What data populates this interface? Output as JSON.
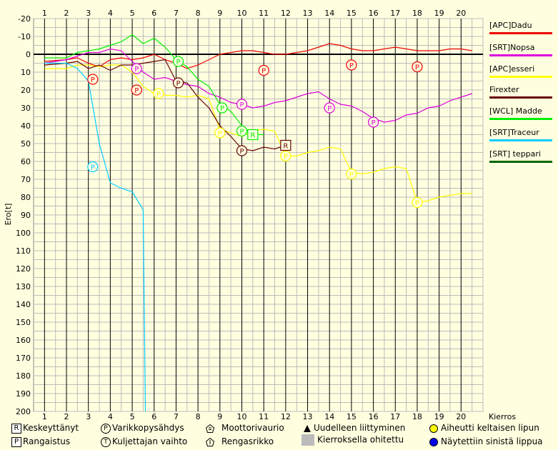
{
  "chart_data": {
    "type": "line",
    "ylabel": "Ero[t]",
    "xlabel": "Kierros",
    "x_ticks": [
      "1",
      "2",
      "3",
      "4",
      "5",
      "6",
      "7",
      "8",
      "9",
      "10",
      "11",
      "12",
      "13",
      "14",
      "15",
      "16",
      "17",
      "18",
      "19",
      "20"
    ],
    "y_ticks": [
      "-20",
      "-10",
      "0",
      "10",
      "20",
      "30",
      "40",
      "50",
      "60",
      "70",
      "80",
      "90",
      "100",
      "110",
      "120",
      "130",
      "140",
      "150",
      "160",
      "170",
      "180",
      "190",
      "200"
    ],
    "ylim": [
      -20,
      200
    ],
    "xlim": [
      0.5,
      21
    ],
    "y_inverted": true,
    "series": [
      {
        "name": "[APC]Dadu",
        "color": "#EE0000",
        "points": [
          [
            1,
            4
          ],
          [
            2,
            3
          ],
          [
            2.5,
            2
          ],
          [
            3,
            5
          ],
          [
            3.5,
            7
          ],
          [
            4,
            3
          ],
          [
            4.5,
            2
          ],
          [
            5,
            3
          ],
          [
            5.5,
            2
          ],
          [
            6,
            0
          ],
          [
            6.5,
            3
          ],
          [
            7,
            5
          ],
          [
            7.5,
            8
          ],
          [
            8,
            6
          ],
          [
            8.5,
            3
          ],
          [
            9,
            0
          ],
          [
            9.5,
            -1
          ],
          [
            10,
            -2
          ],
          [
            10.5,
            -2
          ],
          [
            11,
            -1
          ],
          [
            11.5,
            0
          ],
          [
            12,
            0
          ],
          [
            12.5,
            -1
          ],
          [
            13,
            -2
          ],
          [
            13.5,
            -4
          ],
          [
            14,
            -6
          ],
          [
            14.5,
            -5
          ],
          [
            15,
            -3
          ],
          [
            15.5,
            -2
          ],
          [
            16,
            -2
          ],
          [
            16.5,
            -3
          ],
          [
            17,
            -4
          ],
          [
            17.5,
            -3
          ],
          [
            18,
            -2
          ],
          [
            18.5,
            -2
          ],
          [
            19,
            -2
          ],
          [
            19.5,
            -3
          ],
          [
            20,
            -3
          ],
          [
            20.5,
            -2
          ]
        ]
      },
      {
        "name": "[SRT]Nopsa",
        "color": "#DD00DD",
        "points": [
          [
            1,
            5
          ],
          [
            2,
            3
          ],
          [
            2.5,
            1
          ],
          [
            3,
            -1
          ],
          [
            3.5,
            -1
          ],
          [
            4,
            -3
          ],
          [
            4.5,
            -2
          ],
          [
            5,
            4
          ],
          [
            5.5,
            10
          ],
          [
            6,
            14
          ],
          [
            6.5,
            13
          ],
          [
            7,
            15
          ],
          [
            7.5,
            17
          ],
          [
            8,
            18
          ],
          [
            8.5,
            22
          ],
          [
            9,
            24
          ],
          [
            9.5,
            27
          ],
          [
            10,
            28
          ],
          [
            10.5,
            30
          ],
          [
            11,
            29
          ],
          [
            11.5,
            27
          ],
          [
            12,
            26
          ],
          [
            12.5,
            24
          ],
          [
            13,
            22
          ],
          [
            13.5,
            21
          ],
          [
            14,
            25
          ],
          [
            14.5,
            28
          ],
          [
            15,
            29
          ],
          [
            15.5,
            32
          ],
          [
            16,
            36
          ],
          [
            16.5,
            38
          ],
          [
            17,
            37
          ],
          [
            17.5,
            34
          ],
          [
            18,
            33
          ],
          [
            18.5,
            30
          ],
          [
            19,
            29
          ],
          [
            19.5,
            26
          ],
          [
            20,
            24
          ],
          [
            20.5,
            22
          ]
        ]
      },
      {
        "name": "[APC]esseri",
        "color": "#FFFF00",
        "points": [
          [
            1,
            8
          ],
          [
            2,
            8
          ],
          [
            2.5,
            6
          ],
          [
            3,
            6
          ],
          [
            3.5,
            7
          ],
          [
            4,
            6
          ],
          [
            4.5,
            6
          ],
          [
            5,
            10
          ],
          [
            5.5,
            18
          ],
          [
            6,
            22
          ],
          [
            6.5,
            23
          ],
          [
            7,
            23
          ],
          [
            7.5,
            24
          ],
          [
            8,
            23
          ],
          [
            8.5,
            25
          ],
          [
            9,
            42
          ],
          [
            9.5,
            44
          ],
          [
            10,
            46
          ],
          [
            10.5,
            43
          ],
          [
            11,
            42
          ],
          [
            11.5,
            43
          ],
          [
            12,
            57
          ],
          [
            12.5,
            57
          ],
          [
            13,
            55
          ],
          [
            13.5,
            54
          ],
          [
            14,
            52
          ],
          [
            14.5,
            53
          ],
          [
            15,
            66
          ],
          [
            15.5,
            67
          ],
          [
            16,
            66
          ],
          [
            16.5,
            64
          ],
          [
            17,
            63
          ],
          [
            17.5,
            64
          ],
          [
            18,
            83
          ],
          [
            18.5,
            82
          ],
          [
            19,
            80
          ],
          [
            19.5,
            79
          ],
          [
            20,
            78
          ],
          [
            20.5,
            78
          ]
        ]
      },
      {
        "name": "Firexter",
        "color": "#660000",
        "points": [
          [
            1,
            6
          ],
          [
            2,
            5
          ],
          [
            2.5,
            4
          ],
          [
            3,
            8
          ],
          [
            3.5,
            6
          ],
          [
            4,
            9
          ],
          [
            4.5,
            6
          ],
          [
            5,
            6
          ],
          [
            5.5,
            5
          ],
          [
            6,
            4
          ],
          [
            6.5,
            3
          ],
          [
            7,
            15
          ],
          [
            7.5,
            16
          ],
          [
            8,
            24
          ],
          [
            8.5,
            30
          ],
          [
            9,
            40
          ],
          [
            9.5,
            46
          ],
          [
            10,
            53
          ],
          [
            10.5,
            54
          ],
          [
            11,
            52
          ],
          [
            11.5,
            53
          ],
          [
            12,
            51
          ]
        ]
      },
      {
        "name": "[WCL] Madde",
        "color": "#00EE00",
        "points": [
          [
            1,
            2
          ],
          [
            2,
            2
          ],
          [
            2.5,
            -1
          ],
          [
            3,
            -2
          ],
          [
            3.5,
            -3
          ],
          [
            4,
            -5
          ],
          [
            4.5,
            -7
          ],
          [
            5,
            -11
          ],
          [
            5.5,
            -6
          ],
          [
            6,
            -9
          ],
          [
            6.5,
            -4
          ],
          [
            7,
            3
          ],
          [
            7.5,
            7
          ],
          [
            8,
            14
          ],
          [
            8.5,
            18
          ],
          [
            9,
            28
          ],
          [
            9.5,
            32
          ],
          [
            10,
            40
          ],
          [
            10.5,
            45
          ],
          [
            11,
            45
          ]
        ]
      },
      {
        "name": "[SRT]Traceur",
        "color": "#00CCFF",
        "points": [
          [
            1,
            5
          ],
          [
            2,
            5
          ],
          [
            2.5,
            8
          ],
          [
            3,
            15
          ],
          [
            3.5,
            50
          ],
          [
            4,
            72
          ],
          [
            4.5,
            75
          ],
          [
            5,
            77
          ],
          [
            5.5,
            87
          ],
          [
            5.6,
            200
          ]
        ]
      },
      {
        "name": "[SRT] teppari",
        "color": "#006600",
        "points": []
      }
    ],
    "markers": [
      {
        "label": "P",
        "x": 3.2,
        "y": 14,
        "color": "#EE0000"
      },
      {
        "label": "P",
        "x": 5.2,
        "y": 20,
        "color": "#EE0000"
      },
      {
        "label": "P",
        "x": 11,
        "y": 9,
        "color": "#EE0000"
      },
      {
        "label": "P",
        "x": 15,
        "y": 6,
        "color": "#EE0000"
      },
      {
        "label": "P",
        "x": 18,
        "y": 7,
        "color": "#EE0000"
      },
      {
        "label": "P",
        "x": 5.2,
        "y": 8,
        "color": "#DD00DD"
      },
      {
        "label": "P",
        "x": 10,
        "y": 28,
        "color": "#DD00DD"
      },
      {
        "label": "P",
        "x": 14,
        "y": 30,
        "color": "#DD00DD"
      },
      {
        "label": "P",
        "x": 16,
        "y": 38,
        "color": "#DD00DD"
      },
      {
        "label": "P",
        "x": 6.2,
        "y": 22,
        "color": "#FFFF00"
      },
      {
        "label": "P",
        "x": 9,
        "y": 44,
        "color": "#FFFF00"
      },
      {
        "label": "P",
        "x": 12,
        "y": 57,
        "color": "#FFFF00"
      },
      {
        "label": "P",
        "x": 15,
        "y": 67,
        "color": "#FFFF00"
      },
      {
        "label": "P",
        "x": 18,
        "y": 83,
        "color": "#FFFF00"
      },
      {
        "label": "P",
        "x": 7.1,
        "y": 16,
        "color": "#660000"
      },
      {
        "label": "P",
        "x": 10,
        "y": 54,
        "color": "#660000"
      },
      {
        "label": "P",
        "x": 7.1,
        "y": 4,
        "color": "#00EE00"
      },
      {
        "label": "P",
        "x": 9.1,
        "y": 30,
        "color": "#00EE00"
      },
      {
        "label": "P",
        "x": 10,
        "y": 43,
        "color": "#00EE00"
      },
      {
        "label": "P",
        "x": 3.2,
        "y": 63,
        "color": "#00CCFF"
      }
    ],
    "box_markers": [
      {
        "label": "R",
        "x": 10.5,
        "y": 45,
        "color": "#00EE00"
      },
      {
        "label": "R",
        "x": 12,
        "y": 51,
        "color": "#660000"
      }
    ]
  },
  "legend_key": {
    "row1": {
      "keskeyttanyt": "Keskeyttänyt",
      "varikko": "Varikkopysähdys",
      "moottori": "Moottorivaurio",
      "uudelleen": "Uudelleen liittyminen",
      "keltainen": "Aiheutti keltaisen lipun"
    },
    "row2": {
      "rangaistus": "Rangaistus",
      "kuljettaja": "Kuljettajan vaihto",
      "rengas": "Rengasrikko",
      "ohitettu": "Kierroksella ohitettu",
      "sininen": "Näytettiin sinistä lippua"
    },
    "symbols": {
      "R": "R",
      "P": "P",
      "T": "T"
    }
  }
}
